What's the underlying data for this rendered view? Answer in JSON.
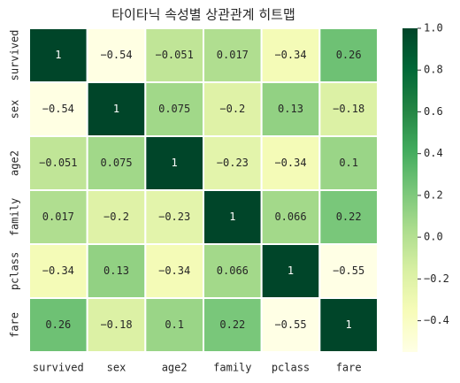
{
  "chart_data": {
    "type": "heatmap",
    "title": "타이타닉 속성별 상관관계 히트맵",
    "x_categories": [
      "survived",
      "sex",
      "age2",
      "family",
      "pclass",
      "fare"
    ],
    "y_categories": [
      "survived",
      "sex",
      "age2",
      "family",
      "pclass",
      "fare"
    ],
    "values": [
      [
        1,
        -0.54,
        -0.051,
        0.017,
        -0.34,
        0.26
      ],
      [
        -0.54,
        1,
        0.075,
        -0.2,
        0.13,
        -0.18
      ],
      [
        -0.051,
        0.075,
        1,
        -0.23,
        -0.34,
        0.1
      ],
      [
        0.017,
        -0.2,
        -0.23,
        1,
        0.066,
        0.22
      ],
      [
        -0.34,
        0.13,
        -0.34,
        0.066,
        1,
        -0.55
      ],
      [
        0.26,
        -0.18,
        0.1,
        0.22,
        -0.55,
        1
      ]
    ],
    "value_labels": [
      [
        "1",
        "−0.54",
        "−0.051",
        "0.017",
        "−0.34",
        "0.26"
      ],
      [
        "−0.54",
        "1",
        "0.075",
        "−0.2",
        "0.13",
        "−0.18"
      ],
      [
        "−0.051",
        "0.075",
        "1",
        "−0.23",
        "−0.34",
        "0.1"
      ],
      [
        "0.017",
        "−0.2",
        "−0.23",
        "1",
        "0.066",
        "0.22"
      ],
      [
        "−0.34",
        "0.13",
        "−0.34",
        "0.066",
        "1",
        "−0.55"
      ],
      [
        "0.26",
        "−0.18",
        "0.1",
        "0.22",
        "−0.55",
        "1"
      ]
    ],
    "clim": [
      -0.55,
      1
    ],
    "cticks": [
      {
        "value": -0.4,
        "label": "−0.4"
      },
      {
        "value": -0.2,
        "label": "−0.2"
      },
      {
        "value": 0,
        "label": "0.0"
      },
      0.2,
      0.4,
      0.6,
      0.8,
      {
        "value": 1,
        "label": "1.0"
      }
    ],
    "colormap": [
      "#ffffe5",
      "#f7fcb9",
      "#d9f0a3",
      "#addd8e",
      "#78c679",
      "#41ab5d",
      "#238443",
      "#006837",
      "#004529"
    ]
  }
}
